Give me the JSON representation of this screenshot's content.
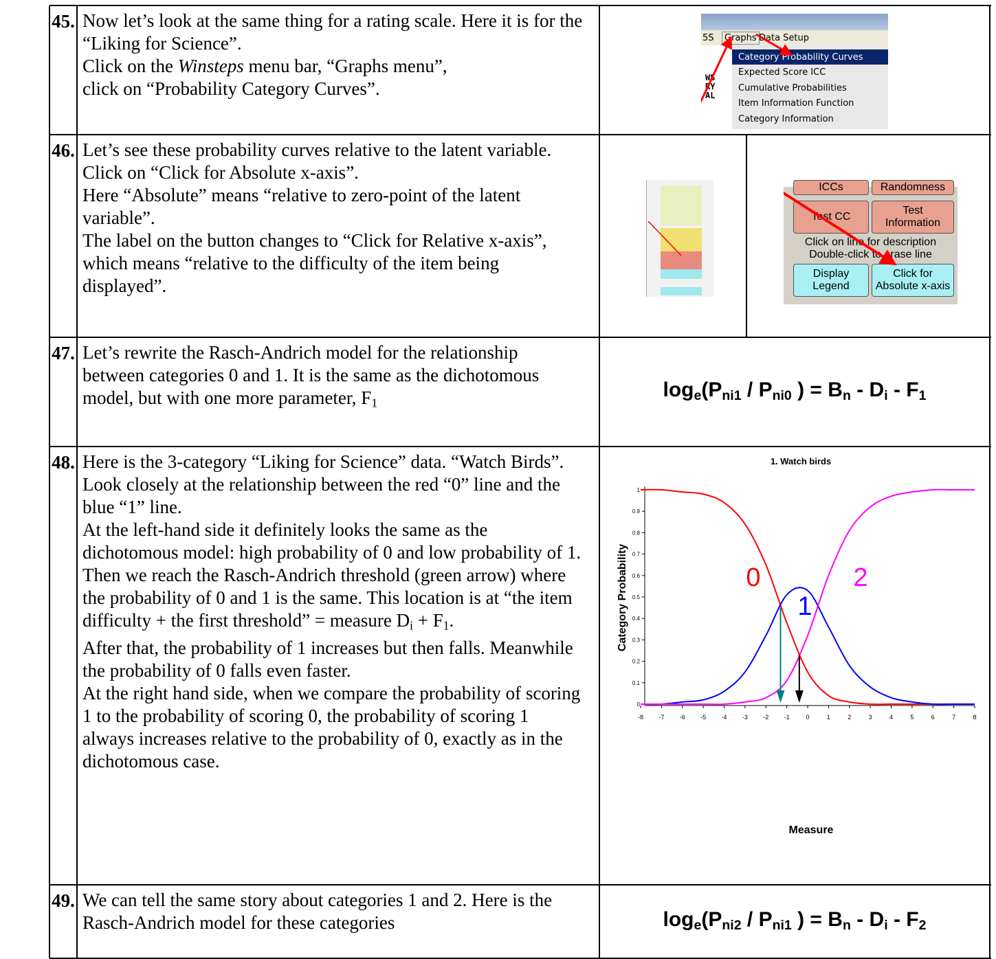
{
  "rows": [
    {
      "number": "45.",
      "paragraphs": [
        [
          "Now let’s look at the same thing for a rating scale. Here it is for the “Liking for Science”."
        ],
        [
          "Click on the ",
          {
            "text": "Winsteps",
            "style": "italic"
          },
          " menu bar, “Graphs menu”,"
        ],
        [
          "click on “Probability Category Curves”."
        ]
      ]
    },
    {
      "number": "46.",
      "paragraphs": [
        [
          "Let’s see these probability curves relative to the latent variable."
        ],
        [
          "Click on “Click for Absolute x-axis”."
        ],
        [
          "Here “Absolute” means “relative to zero-point of the latent variable”."
        ],
        [
          "The label on the button changes to “Click for Relative x-axis”, which means “relative to the difficulty of the item being displayed”."
        ]
      ]
    },
    {
      "number": "47.",
      "paragraphs": [
        [
          "Let’s rewrite the Rasch-Andrich model for the relationship between categories 0 and 1. It is the same as the dichotomous model, but with one more parameter, F",
          {
            "text": "1",
            "style": "sub"
          }
        ]
      ],
      "formula": [
        "log",
        {
          "text": "e",
          "style": "sub"
        },
        "(P",
        {
          "text": "ni1",
          "style": "sub"
        },
        " / P",
        {
          "text": "ni0",
          "style": "sub"
        },
        " ) = B",
        {
          "text": "n",
          "style": "sub"
        },
        " - D",
        {
          "text": "i",
          "style": "sub"
        },
        " - F",
        {
          "text": "1",
          "style": "sub"
        }
      ]
    },
    {
      "number": "48.",
      "paragraphs": [
        [
          "Here is the 3-category “Liking for Science” data. “Watch Birds”."
        ],
        [
          "Look closely at the relationship between the red “0” line and the blue “1” line."
        ],
        [
          "At the left-hand side it definitely looks the same as the dichotomous model: high probability of 0 and low probability of  1."
        ],
        [
          "Then we reach the Rasch-Andrich threshold (green arrow) where the probability of 0 and 1 is the same. This location is at “the item difficulty + the first threshold” = measure D",
          {
            "text": "i",
            "style": "sub"
          },
          " + F",
          {
            "text": "1",
            "style": "sub"
          },
          "."
        ],
        [
          "After that, the probability of 1 increases but then falls. Meanwhile the probability of 0 falls even faster."
        ],
        [
          "At the right hand side, when we compare the probability of scoring 1 to the probability of scoring 0, the probability of scoring 1 always increases relative to the probability of 0, exactly as in the dichotomous case."
        ]
      ]
    },
    {
      "number": "49.",
      "paragraphs": [
        [
          "We can tell the same story about categories 1 and 2. Here is the Rasch-Andrich model for these categories"
        ]
      ],
      "formula": [
        "log",
        {
          "text": "e",
          "style": "sub"
        },
        "(P",
        {
          "text": "ni2",
          "style": "sub"
        },
        " / P",
        {
          "text": "ni1",
          "style": "sub"
        },
        " ) = B",
        {
          "text": "n",
          "style": "sub"
        },
        " - D",
        {
          "text": "i",
          "style": "sub"
        },
        " - F",
        {
          "text": "2",
          "style": "sub"
        }
      ]
    }
  ],
  "menu_screenshot": {
    "fragment": "5S",
    "menus": [
      "Graphs",
      "Data Setup"
    ],
    "items": [
      "Category Probability Curves",
      "Expected Score ICC",
      "Cumulative Probabilities",
      "Item Information Function",
      "Category Information"
    ],
    "side": [
      "WS",
      "RY",
      "AL"
    ]
  },
  "button_screenshot": {
    "buttons": [
      "ICCs",
      "Randomness",
      "Test CC",
      "Test Information",
      "Display Legend",
      "Click for Absolute x-axis"
    ],
    "notes": [
      "Click on line for description",
      "Double-click to erase line"
    ]
  },
  "chart_data": {
    "type": "line",
    "title": "1. Watch birds",
    "x_label": "Measure",
    "y_label": "Category  Probability",
    "x": [
      -8,
      -7,
      -6,
      -5,
      -4,
      -3,
      -2,
      -1,
      0,
      1,
      2,
      3,
      4,
      5,
      6,
      7,
      8
    ],
    "series": [
      {
        "name": "0",
        "color": "#ff0000",
        "values": [
          1,
          1,
          0.99,
          0.98,
          0.94,
          0.84,
          0.65,
          0.38,
          0.15,
          0.04,
          0.01,
          0,
          0,
          0,
          0,
          0,
          0
        ]
      },
      {
        "name": "1",
        "color": "#0000ff",
        "values": [
          0,
          0,
          0.01,
          0.02,
          0.06,
          0.15,
          0.32,
          0.51,
          0.53,
          0.36,
          0.18,
          0.08,
          0.03,
          0.01,
          0,
          0,
          0
        ]
      },
      {
        "name": "2",
        "color": "#ff00ff",
        "values": [
          0,
          0,
          0,
          0,
          0,
          0.01,
          0.03,
          0.11,
          0.32,
          0.6,
          0.81,
          0.92,
          0.97,
          0.99,
          1,
          1,
          1
        ]
      }
    ],
    "arrows": [
      {
        "x": -1.3,
        "y": 0.45,
        "color": "#008080"
      },
      {
        "x": -0.4,
        "y": 0.23,
        "color": "#000000"
      }
    ],
    "xlim": [
      -8,
      8
    ],
    "xticks": [
      -8,
      -7,
      -6,
      -5,
      -4,
      -3,
      -2,
      -1,
      0,
      1,
      2,
      3,
      4,
      5,
      6,
      7,
      8
    ],
    "ylim": [
      0,
      1
    ],
    "yticks": [
      0,
      0.1,
      0.2,
      0.3,
      0.4,
      0.5,
      0.6,
      0.7,
      0.8,
      0.9,
      1
    ]
  }
}
